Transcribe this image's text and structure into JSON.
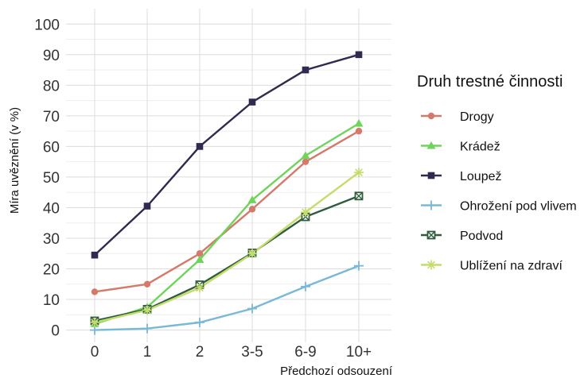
{
  "chart_data": {
    "type": "line",
    "xlabel": "Předchozí odsouzení",
    "ylabel": "Míra uvěznění (v %)",
    "categories": [
      "0",
      "1",
      "2",
      "3-5",
      "6-9",
      "10+"
    ],
    "ylim": [
      -4,
      105
    ],
    "yticks": [
      0,
      10,
      20,
      30,
      40,
      50,
      60,
      70,
      80,
      90,
      100
    ],
    "grid": true,
    "legend": {
      "title": "Druh trestné činnosti",
      "position": "right"
    },
    "series": [
      {
        "name": "Drogy",
        "color": "#d57a6a",
        "marker": "circle",
        "values": [
          12.5,
          15,
          25,
          39.5,
          55,
          65
        ]
      },
      {
        "name": "Krádež",
        "color": "#6ed45a",
        "marker": "triangle",
        "values": [
          2,
          7.5,
          23,
          42.5,
          57,
          67.5
        ]
      },
      {
        "name": "Loupež",
        "color": "#2e2a50",
        "marker": "square",
        "values": [
          24.5,
          40.5,
          60,
          74.5,
          85,
          90
        ]
      },
      {
        "name": "Ohrožení pod vlivem",
        "color": "#78b8d8",
        "marker": "plus",
        "values": [
          0,
          0.5,
          2.5,
          7,
          14.2,
          21
        ]
      },
      {
        "name": "Podvod",
        "color": "#2f5d3c",
        "marker": "boxx",
        "values": [
          3,
          6.8,
          14.8,
          25.2,
          37,
          43.8
        ]
      },
      {
        "name": "Ublížení na zdraví",
        "color": "#c3dc6a",
        "marker": "star",
        "values": [
          2.5,
          6.5,
          13.8,
          25,
          38.5,
          51.5
        ]
      }
    ]
  }
}
